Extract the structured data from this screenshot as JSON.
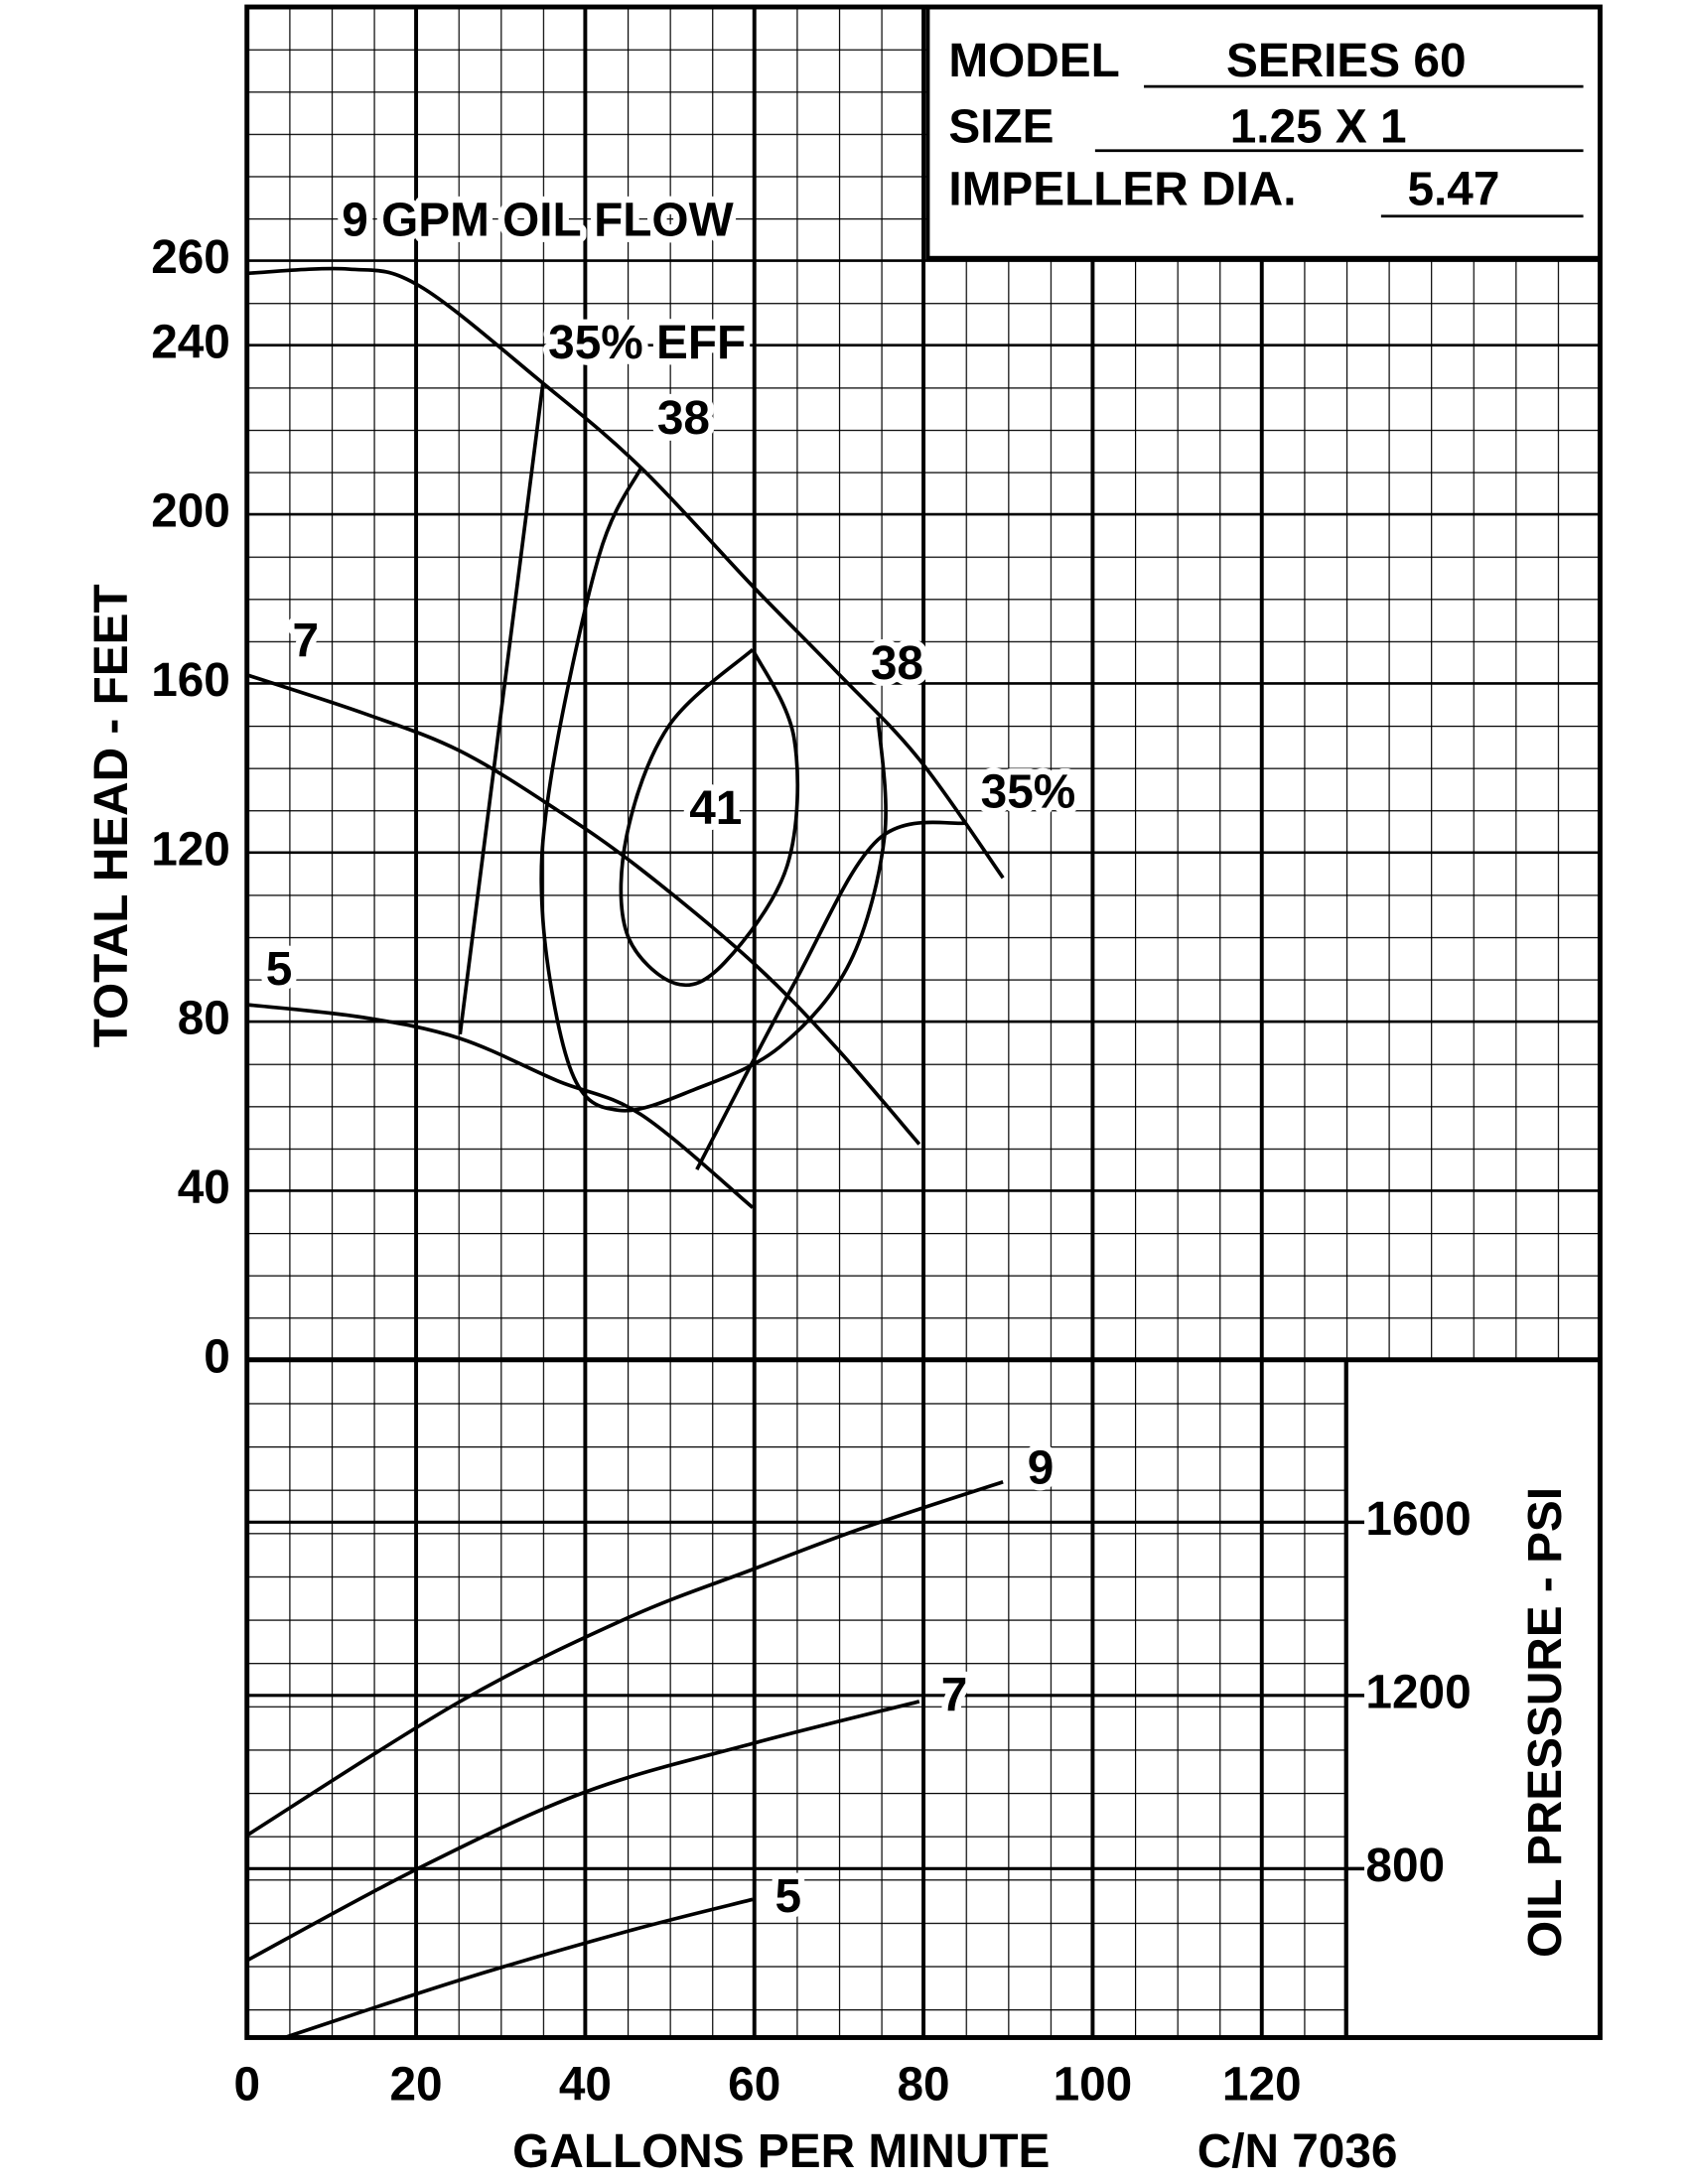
{
  "chart_data": [
    {
      "type": "line",
      "ylabel": "TOTAL HEAD - FEET",
      "xlim": [
        0,
        160
      ],
      "ylim": [
        0,
        320
      ],
      "yticks": [
        0,
        40,
        80,
        120,
        160,
        200,
        240,
        260
      ],
      "grid": true,
      "series": [
        {
          "name": "9 GPM OIL FLOW",
          "color": "#000000",
          "x": [
            0,
            12,
            20.4,
            35,
            46.6,
            59.8,
            69.6,
            79.5,
            89.4
          ],
          "values": [
            257,
            258,
            254,
            231,
            211,
            183,
            163,
            142,
            114
          ]
        },
        {
          "name": "7",
          "color": "#000000",
          "x": [
            0,
            13.7,
            25.2,
            36.7,
            46.6,
            59.8,
            69.6,
            79.5
          ],
          "values": [
            162,
            153,
            144,
            130,
            116,
            94,
            74,
            51
          ]
        },
        {
          "name": "5",
          "color": "#000000",
          "x": [
            0,
            13.7,
            25.2,
            36.7,
            46.6,
            59.8
          ],
          "values": [
            84,
            81,
            76,
            66,
            58,
            36
          ]
        },
        {
          "name": "35% EFF",
          "end_label": "35%",
          "color": "#000000",
          "x": [
            25.2,
            35,
            null,
            53.2,
            64.7,
            74.6,
            85.1
          ],
          "values": [
            77,
            231,
            null,
            45,
            89,
            123,
            127
          ]
        },
        {
          "name": "38",
          "end_label": "38",
          "color": "#000000",
          "x": [
            46.6,
            41.6,
            35.9,
            35,
            38.4,
            44,
            53,
            63,
            71.3,
            75.4,
            74.6
          ],
          "values": [
            211,
            190,
            137,
            104,
            68,
            59,
            64,
            74,
            94,
            124,
            152
          ]
        },
        {
          "name": "41",
          "color": "#000000",
          "x": [
            59.8,
            64.7,
            63.9,
            56.5,
            50.7,
            44.9,
            44.9,
            49.9,
            59.8
          ],
          "values": [
            168,
            147,
            117,
            94,
            89,
            101,
            124,
            150,
            168
          ]
        }
      ]
    },
    {
      "type": "line",
      "ylabel": "OIL PRESSURE - PSI",
      "xlabel": "GALLONS PER MINUTE",
      "note": "C/N 7036",
      "xlim": [
        0,
        160
      ],
      "ylim": [
        410,
        1975
      ],
      "xticks": [
        0,
        20,
        40,
        60,
        80,
        100,
        120
      ],
      "yticks": [
        800,
        1200,
        1600
      ],
      "grid": true,
      "series": [
        {
          "name": "9",
          "color": "#000000",
          "x": [
            0,
            25.2,
            44.9,
            59.8,
            72.9,
            89.4
          ],
          "values": [
            877,
            1186,
            1378,
            1491,
            1587,
            1693
          ]
        },
        {
          "name": "7",
          "color": "#000000",
          "x": [
            0,
            20.2,
            40,
            59.8,
            79.5
          ],
          "values": [
            588,
            800,
            977,
            1089,
            1186
          ]
        },
        {
          "name": "5",
          "color": "#000000",
          "x": [
            4.6,
            25.2,
            44.9,
            59.8
          ],
          "values": [
            411,
            543,
            655,
            729
          ]
        }
      ]
    }
  ],
  "model_box": {
    "rows": [
      {
        "label": "MODEL",
        "value": "SERIES 60"
      },
      {
        "label": "SIZE",
        "value": "1.25 X 1"
      },
      {
        "label": "IMPELLER DIA.",
        "value": "5.47"
      }
    ]
  }
}
